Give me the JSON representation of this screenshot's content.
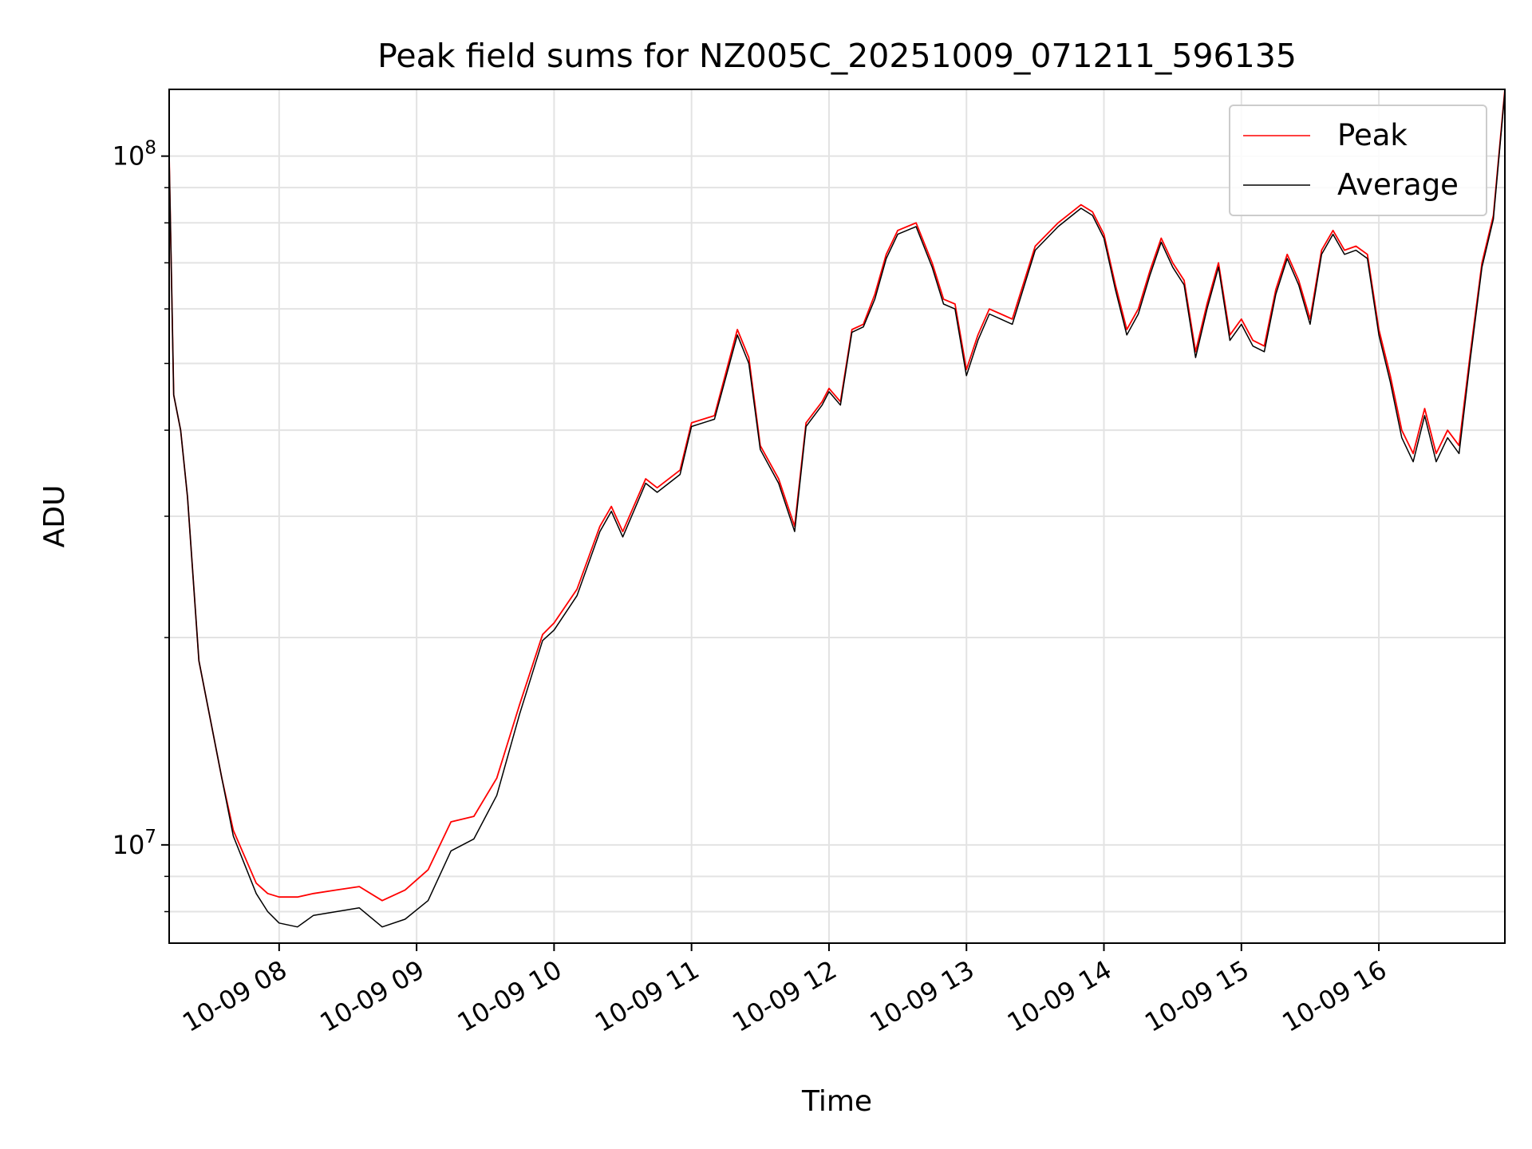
{
  "chart_data": {
    "type": "line",
    "title": "Peak field sums for NZ005C_20251009_071211_596135",
    "xlabel": "Time",
    "ylabel": "ADU",
    "yscale": "log",
    "xlim": [
      "2025-10-09 07:12",
      "2025-10-09 16:55"
    ],
    "ylim": [
      7200000,
      125000000
    ],
    "grid": true,
    "legend_position": "top-right",
    "x_ticks": [
      "10-09 08",
      "10-09 09",
      "10-09 10",
      "10-09 11",
      "10-09 12",
      "10-09 13",
      "10-09 14",
      "10-09 15",
      "10-09 16"
    ],
    "y_ticks": [
      {
        "base": "10",
        "exp": "7"
      },
      {
        "base": "10",
        "exp": "8"
      }
    ],
    "x": [
      "07:12",
      "07:14",
      "07:17",
      "07:20",
      "07:25",
      "07:35",
      "07:40",
      "07:50",
      "07:55",
      "08:00",
      "08:08",
      "08:15",
      "08:25",
      "08:35",
      "08:45",
      "08:55",
      "09:05",
      "09:15",
      "09:25",
      "09:35",
      "09:45",
      "09:55",
      "10:00",
      "10:10",
      "10:20",
      "10:25",
      "10:30",
      "10:40",
      "10:45",
      "10:55",
      "11:00",
      "11:10",
      "11:20",
      "11:25",
      "11:30",
      "11:38",
      "11:45",
      "11:50",
      "11:57",
      "12:00",
      "12:05",
      "12:10",
      "12:15",
      "12:20",
      "12:25",
      "12:30",
      "12:38",
      "12:45",
      "12:50",
      "12:55",
      "13:00",
      "13:05",
      "13:10",
      "13:15",
      "13:20",
      "13:30",
      "13:40",
      "13:50",
      "13:55",
      "14:00",
      "14:05",
      "14:10",
      "14:15",
      "14:20",
      "14:25",
      "14:30",
      "14:35",
      "14:40",
      "14:45",
      "14:50",
      "14:55",
      "15:00",
      "15:05",
      "15:10",
      "15:15",
      "15:20",
      "15:25",
      "15:30",
      "15:35",
      "15:40",
      "15:45",
      "15:50",
      "15:55",
      "16:00",
      "16:05",
      "16:10",
      "16:15",
      "16:20",
      "16:25",
      "16:30",
      "16:35",
      "16:40",
      "16:45",
      "16:50",
      "16:55"
    ],
    "series": [
      {
        "name": "Peak",
        "color": "#ff0000",
        "values": [
          100000000,
          45000000,
          40000000,
          32000000,
          18500000,
          12500000,
          10500000,
          8800000,
          8500000,
          8400000,
          8400000,
          8500000,
          8600000,
          8700000,
          8300000,
          8600000,
          9200000,
          10800000,
          11000000,
          12500000,
          16000000,
          20200000,
          21000000,
          23500000,
          29000000,
          31000000,
          28500000,
          34000000,
          33000000,
          35000000,
          41000000,
          42000000,
          56000000,
          51000000,
          38000000,
          34000000,
          29000000,
          41000000,
          44000000,
          46000000,
          44000000,
          56000000,
          57000000,
          63000000,
          72000000,
          78000000,
          80000000,
          70000000,
          62000000,
          61000000,
          49000000,
          55000000,
          60000000,
          59000000,
          58000000,
          74000000,
          80000000,
          85000000,
          83000000,
          77000000,
          65000000,
          56000000,
          60000000,
          68000000,
          76000000,
          70000000,
          66000000,
          52000000,
          61000000,
          70000000,
          55000000,
          58000000,
          54000000,
          53000000,
          64000000,
          72000000,
          66000000,
          58000000,
          73000000,
          78000000,
          73000000,
          74000000,
          72000000,
          56000000,
          48000000,
          40000000,
          37000000,
          43000000,
          37000000,
          40000000,
          38000000,
          52000000,
          70000000,
          82000000,
          125000000
        ]
      },
      {
        "name": "Average",
        "color": "#000000",
        "values": [
          100000000,
          45000000,
          40000000,
          32000000,
          18500000,
          12500000,
          10300000,
          8500000,
          8000000,
          7700000,
          7600000,
          7900000,
          8000000,
          8100000,
          7600000,
          7800000,
          8300000,
          9800000,
          10200000,
          11800000,
          15500000,
          19800000,
          20500000,
          23000000,
          28500000,
          30500000,
          28000000,
          33500000,
          32500000,
          34500000,
          40500000,
          41500000,
          55000000,
          50000000,
          37500000,
          33500000,
          28500000,
          40500000,
          43500000,
          45500000,
          43500000,
          55500000,
          56500000,
          62000000,
          71000000,
          77000000,
          79000000,
          69000000,
          61000000,
          60000000,
          48000000,
          54000000,
          59000000,
          58000000,
          57000000,
          73000000,
          79000000,
          84000000,
          82000000,
          76000000,
          64000000,
          55000000,
          59000000,
          67000000,
          75000000,
          69000000,
          65000000,
          51000000,
          60000000,
          69000000,
          54000000,
          57000000,
          53000000,
          52000000,
          63000000,
          71000000,
          65000000,
          57000000,
          72000000,
          77000000,
          72000000,
          73000000,
          71000000,
          55000000,
          47000000,
          39000000,
          36000000,
          42000000,
          36000000,
          39000000,
          37000000,
          51000000,
          69000000,
          81000000,
          124000000
        ]
      }
    ]
  }
}
